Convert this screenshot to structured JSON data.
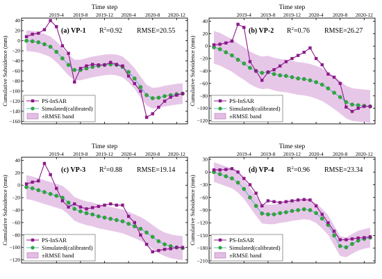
{
  "colors": {
    "psinsar": "#8b1a89",
    "simulated": "#2fa83a",
    "sim_line": "#4fb7c4",
    "band_fill": "#e3bde4",
    "band_edge": "#b66fb7"
  },
  "legend": {
    "psinsar": "PS-InSAR",
    "simulated": "Simulated(calibrated)",
    "band": "±RMSE band"
  },
  "chart_data": [
    {
      "type": "line",
      "panel": "(a) VP-1",
      "r2_label": "R",
      "r2_sup": "2",
      "r2_value": "=0.92",
      "rmse_text": "RMSE=20.55",
      "title": "Time step",
      "top_ticks": [
        "2019-4",
        "2019-8",
        "2019-12",
        "2020-4",
        "2020-8",
        "2020-12"
      ],
      "top_tick_index": [
        5,
        9,
        13,
        17,
        21,
        25
      ],
      "ylabel": "Cumulative Subsidence (mm)",
      "yticks": [
        40,
        20,
        0,
        -20,
        -40,
        -60,
        -80,
        -100,
        -120,
        -140,
        -160
      ],
      "ylim": [
        -165,
        45
      ],
      "n": 27,
      "rmse": 20.55,
      "psinsar": [
        8,
        13,
        15,
        22,
        40,
        28,
        -10,
        -25,
        -82,
        -55,
        -50,
        -47,
        -48,
        -48,
        -43,
        -47,
        -50,
        -70,
        -85,
        -100,
        -152,
        -145,
        -132,
        -120,
        -112,
        -108,
        -105
      ],
      "simulated": [
        0,
        -1,
        -3,
        -7,
        -12,
        -22,
        -35,
        -48,
        -58,
        -58,
        -55,
        -52,
        -50,
        -48,
        -47,
        -48,
        -52,
        -62,
        -75,
        -92,
        -108,
        -114,
        -113,
        -110,
        -108,
        -106,
        -105
      ]
    },
    {
      "type": "line",
      "panel": "(b) VP-2",
      "r2_label": "R",
      "r2_sup": "2",
      "r2_value": "=0.76",
      "rmse_text": "RMSE=26.27",
      "title": "Time step",
      "top_ticks": [
        "2019-4",
        "2019-8",
        "2019-12",
        "2020-4",
        "2020-8",
        "2020-12"
      ],
      "top_tick_index": [
        5,
        9,
        13,
        17,
        21,
        25
      ],
      "ylabel": "Cumulative Subsidence (mm)",
      "yticks": [
        40,
        20,
        0,
        -20,
        -40,
        -60,
        -80,
        -100,
        -120
      ],
      "ylim": [
        -125,
        45
      ],
      "n": 27,
      "rmse": 26.27,
      "psinsar": [
        2,
        3,
        5,
        8,
        35,
        30,
        -25,
        -40,
        -55,
        -42,
        -38,
        -32,
        -25,
        -20,
        -15,
        -10,
        -3,
        -20,
        -30,
        -45,
        -50,
        -60,
        -98,
        -105,
        -100,
        -97,
        -97
      ],
      "simulated": [
        -2,
        -5,
        -10,
        -15,
        -22,
        -28,
        -35,
        -40,
        -43,
        -42,
        -45,
        -47,
        -48,
        -50,
        -52,
        -53,
        -55,
        -58,
        -62,
        -68,
        -75,
        -82,
        -90,
        -94,
        -95,
        -96,
        -97
      ]
    },
    {
      "type": "line",
      "panel": "(c) VP-3",
      "r2_label": "R",
      "r2_sup": "2",
      "r2_value": "=0.88",
      "rmse_text": "RMSE=19.14",
      "title": "Time step",
      "top_ticks": [
        "2019-4",
        "2019-8",
        "2019-12",
        "2020-4",
        "2020-8",
        "2020-12"
      ],
      "top_tick_index": [
        5,
        9,
        13,
        17,
        21,
        25
      ],
      "ylabel": "Cumulative Subsidence (mm)",
      "yticks": [
        40,
        20,
        0,
        -20,
        -40,
        -60,
        -80,
        -100,
        -120
      ],
      "ylim": [
        -125,
        45
      ],
      "n": 27,
      "rmse": 19.14,
      "psinsar": [
        2,
        5,
        7,
        35,
        17,
        -5,
        -25,
        -35,
        -30,
        -35,
        -38,
        -36,
        -34,
        -32,
        -30,
        -32,
        -32,
        -50,
        -60,
        -80,
        -95,
        -107,
        -105,
        -103,
        -102,
        -100,
        -100
      ],
      "simulated": [
        -3,
        -5,
        -8,
        -11,
        -14,
        -17,
        -20,
        -28,
        -38,
        -42,
        -45,
        -47,
        -50,
        -52,
        -54,
        -56,
        -58,
        -62,
        -66,
        -70,
        -76,
        -83,
        -90,
        -95,
        -98,
        -100,
        -101
      ]
    },
    {
      "type": "line",
      "panel": "(d) VP-4",
      "r2_label": "R",
      "r2_sup": "2",
      "r2_value": "=0.96",
      "rmse_text": "RMSE=23.34",
      "title": "Time step",
      "top_ticks": [
        "2019-4",
        "2019-8",
        "2019-12",
        "2020-4",
        "2020-8",
        "2020-12"
      ],
      "top_tick_index": [
        5,
        9,
        13,
        17,
        21,
        25
      ],
      "ylabel": "Cumulative Subsidence (mm)",
      "yticks": [
        30,
        0,
        -30,
        -60,
        -90,
        -120,
        -150,
        -180,
        -210
      ],
      "ylim": [
        -215,
        35
      ],
      "n": 27,
      "rmse": 23.34,
      "psinsar": [
        5,
        5,
        6,
        8,
        0,
        -15,
        -30,
        -50,
        -80,
        -68,
        -70,
        -72,
        -70,
        -68,
        -66,
        -65,
        -66,
        -80,
        -100,
        -120,
        -140,
        -160,
        -160,
        -158,
        -156,
        -155,
        -153
      ],
      "simulated": [
        0,
        -5,
        -10,
        -15,
        -25,
        -40,
        -60,
        -80,
        -98,
        -100,
        -100,
        -97,
        -95,
        -92,
        -90,
        -88,
        -90,
        -97,
        -110,
        -125,
        -150,
        -175,
        -178,
        -170,
        -162,
        -158,
        -155
      ]
    }
  ]
}
